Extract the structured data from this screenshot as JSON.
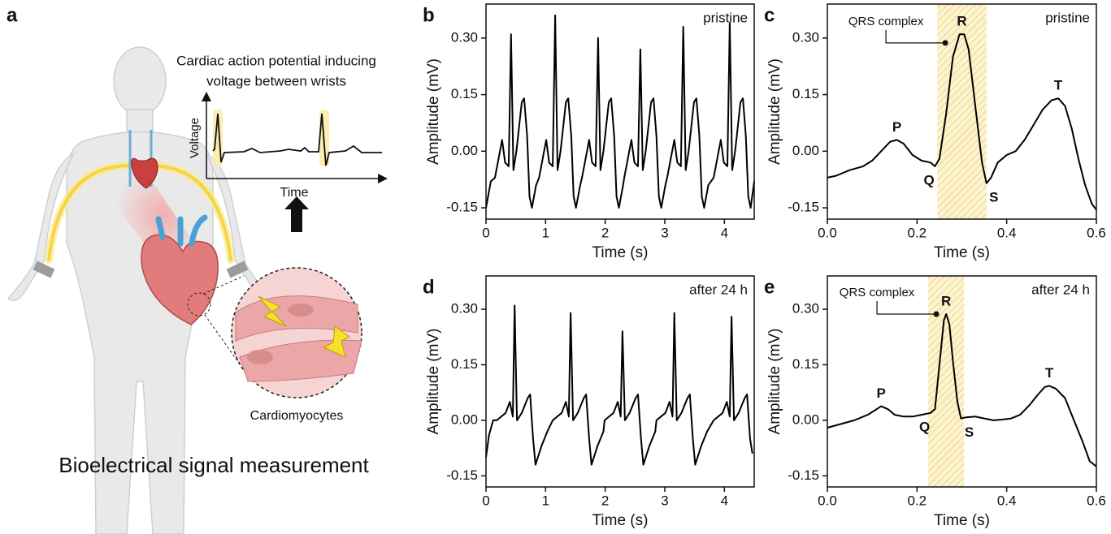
{
  "illustration": {
    "panel": "a",
    "title_lines": [
      "Cardiac action potential inducing",
      "voltage between wrists"
    ],
    "inset_y_label": "Voltage",
    "inset_x_label": "Time",
    "cell_label": "Cardiomyocytes",
    "caption": "Bioelectrical signal measurement"
  },
  "chart_data": [
    {
      "type": "line",
      "panel": "b",
      "label": "pristine",
      "x_label": "Time (s)",
      "y_label": "Amplitude (mV)",
      "color": "#000000",
      "xlim": [
        0,
        4.5
      ],
      "ylim": [
        -0.18,
        0.39
      ],
      "xticks": [
        0,
        1,
        2,
        3,
        4
      ],
      "yticks": [
        -0.15,
        {
          "value": 0,
          "label": "0.00"
        },
        0.15,
        {
          "value": 0.3,
          "label": "0.30"
        }
      ],
      "x": [
        0,
        0.08,
        0.15,
        0.27,
        0.32,
        0.38,
        0.42,
        0.46,
        0.51,
        0.6,
        0.64,
        0.69,
        0.73,
        0.77,
        0.84,
        0.89,
        1.01,
        1.06,
        1.12,
        1.16,
        1.2,
        1.25,
        1.34,
        1.38,
        1.43,
        1.47,
        1.51,
        1.58,
        1.61,
        1.73,
        1.78,
        1.84,
        1.88,
        1.92,
        1.97,
        2.06,
        2.1,
        2.15,
        2.19,
        2.23,
        2.3,
        2.32,
        2.44,
        2.49,
        2.55,
        2.59,
        2.63,
        2.68,
        2.77,
        2.81,
        2.86,
        2.9,
        2.94,
        3.01,
        3.04,
        3.16,
        3.21,
        3.27,
        3.31,
        3.35,
        3.4,
        3.49,
        3.53,
        3.58,
        3.62,
        3.66,
        3.73,
        3.82,
        3.94,
        3.99,
        4.05,
        4.09,
        4.13,
        4.18,
        4.27,
        4.31,
        4.36,
        4.4,
        4.44,
        4.5
      ],
      "values": [
        -0.15,
        -0.08,
        -0.07,
        0.03,
        -0.03,
        -0.04,
        0.31,
        -0.05,
        0,
        0.13,
        0.14,
        0.04,
        -0.12,
        -0.15,
        -0.09,
        -0.07,
        0.03,
        -0.03,
        -0.04,
        0.36,
        -0.05,
        0,
        0.13,
        0.14,
        0.04,
        -0.12,
        -0.15,
        -0.09,
        -0.07,
        0.03,
        -0.03,
        -0.04,
        0.3,
        -0.05,
        0,
        0.13,
        0.14,
        0.04,
        -0.12,
        -0.15,
        -0.09,
        -0.07,
        0.03,
        -0.03,
        -0.04,
        0.27,
        -0.05,
        0,
        0.13,
        0.14,
        0.04,
        -0.12,
        -0.15,
        -0.09,
        -0.07,
        0.03,
        -0.03,
        -0.04,
        0.33,
        -0.05,
        0,
        0.13,
        0.14,
        0.04,
        -0.12,
        -0.15,
        -0.09,
        -0.07,
        0.03,
        -0.03,
        -0.04,
        0.34,
        -0.05,
        0,
        0.13,
        0.14,
        0.04,
        -0.12,
        -0.15,
        -0.08
      ]
    },
    {
      "type": "line",
      "panel": "c",
      "label": "pristine",
      "x_label": "Time (s)",
      "y_label": "Amplitude (mV)",
      "color": "#000000",
      "xlim": [
        0,
        0.6
      ],
      "ylim": [
        -0.18,
        0.39
      ],
      "xticks": [
        {
          "value": 0,
          "label": "0.0"
        },
        0.2,
        0.4,
        0.6
      ],
      "yticks": [
        -0.15,
        {
          "value": 0,
          "label": "0.00"
        },
        0.15,
        {
          "value": 0.3,
          "label": "0.30"
        }
      ],
      "x": [
        0,
        0.02,
        0.05,
        0.08,
        0.1,
        0.12,
        0.14,
        0.155,
        0.17,
        0.19,
        0.21,
        0.23,
        0.24,
        0.25,
        0.265,
        0.28,
        0.295,
        0.305,
        0.315,
        0.33,
        0.345,
        0.355,
        0.365,
        0.38,
        0.4,
        0.42,
        0.44,
        0.46,
        0.48,
        0.5,
        0.515,
        0.53,
        0.545,
        0.56,
        0.575,
        0.59,
        0.6
      ],
      "values": [
        -0.07,
        -0.065,
        -0.05,
        -0.04,
        -0.025,
        0,
        0.025,
        0.03,
        0.02,
        -0.01,
        -0.025,
        -0.03,
        -0.04,
        -0.02,
        0.1,
        0.25,
        0.31,
        0.31,
        0.27,
        0.12,
        -0.03,
        -0.085,
        -0.07,
        -0.03,
        -0.01,
        0,
        0.03,
        0.07,
        0.11,
        0.135,
        0.14,
        0.12,
        0.06,
        -0.02,
        -0.09,
        -0.14,
        -0.155
      ],
      "highlight": {
        "text": "QRS complex",
        "xlim": [
          0.245,
          0.355
        ],
        "x": 0.263,
        "y": 0.287
      },
      "annotations": [
        {
          "text": "P",
          "x": 0.155,
          "y": 0.03,
          "position": "above"
        },
        {
          "text": "Q",
          "x": 0.245,
          "y": -0.04,
          "position": "below-left"
        },
        {
          "text": "R",
          "x": 0.3,
          "y": 0.31,
          "position": "above"
        },
        {
          "text": "S",
          "x": 0.355,
          "y": -0.085,
          "position": "below-right"
        },
        {
          "text": "T",
          "x": 0.515,
          "y": 0.14,
          "position": "above"
        }
      ]
    },
    {
      "type": "line",
      "panel": "d",
      "label": "after 24 h",
      "x_label": "Time (s)",
      "y_label": "Amplitude (mV)",
      "color": "#000000",
      "xlim": [
        0,
        4.5
      ],
      "ylim": [
        -0.18,
        0.39
      ],
      "xticks": [
        0,
        1,
        2,
        3,
        4
      ],
      "yticks": [
        -0.15,
        {
          "value": 0,
          "label": "0.00"
        },
        0.15,
        {
          "value": 0.3,
          "label": "0.30"
        }
      ],
      "x": [
        0,
        0.05,
        0.12,
        0.18,
        0.33,
        0.4,
        0.45,
        0.48,
        0.52,
        0.6,
        0.7,
        0.74,
        0.79,
        0.83,
        0.93,
        1.03,
        1.12,
        1.27,
        1.34,
        1.39,
        1.42,
        1.46,
        1.54,
        1.64,
        1.68,
        1.73,
        1.77,
        1.87,
        1.97,
        1.99,
        2.14,
        2.21,
        2.26,
        2.29,
        2.33,
        2.41,
        2.51,
        2.55,
        2.6,
        2.64,
        2.74,
        2.84,
        2.86,
        3.01,
        3.08,
        3.13,
        3.16,
        3.2,
        3.28,
        3.38,
        3.42,
        3.47,
        3.51,
        3.61,
        3.71,
        3.82,
        3.97,
        4.04,
        4.09,
        4.12,
        4.16,
        4.24,
        4.34,
        4.38,
        4.43,
        4.47
      ],
      "values": [
        -0.1,
        -0.04,
        0,
        0,
        0.02,
        0.05,
        0.01,
        0.31,
        0,
        0.02,
        0.06,
        0.07,
        -0.05,
        -0.12,
        -0.07,
        -0.03,
        0,
        0.02,
        0.05,
        0.01,
        0.29,
        0,
        0.02,
        0.06,
        0.07,
        -0.05,
        -0.12,
        -0.07,
        -0.03,
        0,
        0.02,
        0.05,
        0.01,
        0.24,
        0,
        0.02,
        0.06,
        0.07,
        -0.05,
        -0.12,
        -0.07,
        -0.03,
        0,
        0.02,
        0.05,
        0.01,
        0.29,
        0,
        0.02,
        0.06,
        0.07,
        -0.05,
        -0.12,
        -0.07,
        -0.03,
        0,
        0.02,
        0.05,
        0.01,
        0.28,
        0,
        0.02,
        0.06,
        0.07,
        -0.05,
        -0.09
      ]
    },
    {
      "type": "line",
      "panel": "e",
      "label": "after 24 h",
      "x_label": "Time (s)",
      "y_label": "Amplitude (mV)",
      "color": "#000000",
      "xlim": [
        0,
        0.6
      ],
      "ylim": [
        -0.18,
        0.39
      ],
      "xticks": [
        {
          "value": 0,
          "label": "0.0"
        },
        0.2,
        0.4,
        0.6
      ],
      "yticks": [
        -0.15,
        {
          "value": 0,
          "label": "0.00"
        },
        0.15,
        {
          "value": 0.3,
          "label": "0.30"
        }
      ],
      "x": [
        0,
        0.03,
        0.06,
        0.09,
        0.11,
        0.12,
        0.135,
        0.15,
        0.17,
        0.19,
        0.21,
        0.23,
        0.24,
        0.25,
        0.26,
        0.265,
        0.272,
        0.28,
        0.29,
        0.298,
        0.31,
        0.33,
        0.35,
        0.37,
        0.39,
        0.41,
        0.43,
        0.45,
        0.47,
        0.485,
        0.495,
        0.51,
        0.53,
        0.55,
        0.57,
        0.585,
        0.6
      ],
      "values": [
        -0.02,
        -0.01,
        0,
        0.015,
        0.03,
        0.038,
        0.03,
        0.015,
        0.01,
        0.01,
        0.015,
        0.02,
        0.03,
        0.15,
        0.27,
        0.287,
        0.26,
        0.16,
        0.05,
        0.005,
        0.008,
        0.01,
        0.005,
        0,
        0.002,
        0.005,
        0.015,
        0.04,
        0.07,
        0.09,
        0.093,
        0.085,
        0.06,
        0,
        -0.06,
        -0.11,
        -0.125
      ],
      "highlight": {
        "text": "QRS complex",
        "xlim": [
          0.225,
          0.305
        ],
        "x": 0.243,
        "y": 0.287
      },
      "annotations": [
        {
          "text": "P",
          "x": 0.12,
          "y": 0.038,
          "position": "above"
        },
        {
          "text": "Q",
          "x": 0.235,
          "y": 0.02,
          "position": "below-left"
        },
        {
          "text": "R",
          "x": 0.265,
          "y": 0.287,
          "position": "above"
        },
        {
          "text": "S",
          "x": 0.3,
          "y": 0.005,
          "position": "below-right"
        },
        {
          "text": "T",
          "x": 0.495,
          "y": 0.093,
          "position": "above"
        }
      ]
    }
  ]
}
